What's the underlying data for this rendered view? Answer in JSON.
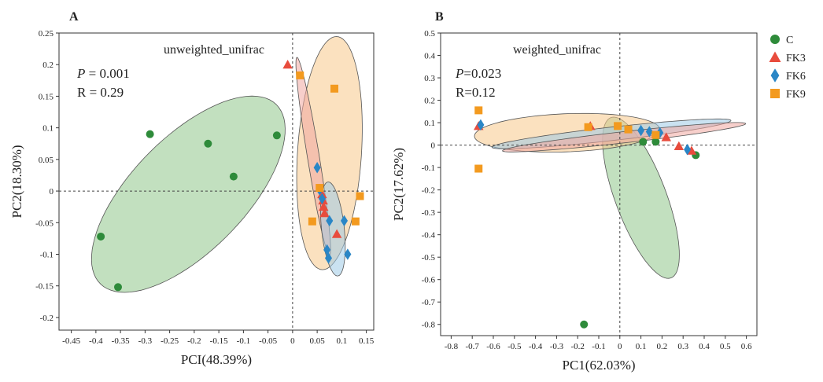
{
  "figure": {
    "colors": {
      "C": "#2e8b3a",
      "FK3": "#e84c3d",
      "FK6": "#2a86c6",
      "FK9": "#f39a1f",
      "C_fill": "#8fc78a",
      "FK3_fill": "#f0a8a0",
      "FK6_fill": "#9fcbe6",
      "FK9_fill": "#f8c88a"
    },
    "icons": {
      "C": "circle",
      "FK3": "triangle",
      "FK6": "diamond",
      "FK9": "square"
    }
  },
  "chart_data": [
    {
      "panel": "A",
      "type": "scatter",
      "title": "",
      "method_label": "unweighted_unifrac",
      "stats": {
        "p_prefix": "P",
        "p_value": "= 0.001",
        "r": "R = 0.29"
      },
      "xlabel": "PCI(48.39%)",
      "ylabel": "PC2(18.30%)",
      "xlim": [
        -0.475,
        0.165
      ],
      "ylim": [
        -0.22,
        0.25
      ],
      "xticks": [
        -0.45,
        -0.4,
        -0.35,
        -0.3,
        -0.25,
        -0.2,
        -0.15,
        -0.1,
        -0.05,
        0,
        0.05,
        0.1,
        0.15
      ],
      "xtick_labels": [
        "-0.45",
        "-0.4",
        "-0.35",
        "-0.3",
        "-0.25",
        "-0.2",
        "-0.15",
        "-0.1",
        "-0.05",
        "0",
        "0.05",
        "0.1",
        "0.15"
      ],
      "yticks": [
        0.25,
        0.2,
        0.15,
        0.1,
        0.05,
        0,
        -0.05,
        -0.1,
        -0.15,
        -0.2
      ],
      "ytick_labels": [
        "0.25",
        "0.2",
        "0.15",
        "0.1",
        "0.05",
        "0",
        "-0.05",
        "-0.1",
        "-0.15",
        "-0.2"
      ],
      "reference_lines": {
        "x": 0,
        "y": 0
      },
      "series": [
        {
          "name": "C",
          "marker": "circle",
          "points": [
            [
              -0.39,
              -0.072
            ],
            [
              -0.355,
              -0.152
            ],
            [
              -0.29,
              0.09
            ],
            [
              -0.172,
              0.075
            ],
            [
              -0.12,
              0.023
            ],
            [
              -0.032,
              0.088
            ]
          ]
        },
        {
          "name": "FK3",
          "marker": "triangle",
          "points": [
            [
              -0.01,
              0.2
            ],
            [
              0.06,
              -0.005
            ],
            [
              0.062,
              -0.015
            ],
            [
              0.063,
              -0.025
            ],
            [
              0.065,
              -0.035
            ],
            [
              0.09,
              -0.068
            ]
          ]
        },
        {
          "name": "FK6",
          "marker": "diamond",
          "points": [
            [
              0.05,
              0.037
            ],
            [
              0.055,
              0.002
            ],
            [
              0.06,
              -0.012
            ],
            [
              0.075,
              -0.047
            ],
            [
              0.07,
              -0.093
            ],
            [
              0.073,
              -0.106
            ],
            [
              0.105,
              -0.047
            ],
            [
              0.112,
              -0.1
            ]
          ]
        },
        {
          "name": "FK9",
          "marker": "square",
          "points": [
            [
              0.015,
              0.183
            ],
            [
              0.085,
              0.162
            ],
            [
              0.04,
              -0.048
            ],
            [
              0.055,
              0.005
            ],
            [
              0.128,
              -0.048
            ],
            [
              0.137,
              -0.008
            ]
          ]
        }
      ],
      "ellipses": [
        {
          "group": "C",
          "cx": -0.212,
          "cy": -0.005,
          "rx": 0.23,
          "ry": 0.1,
          "angle_deg": 35
        },
        {
          "group": "FK9",
          "cx": 0.075,
          "cy": 0.06,
          "rx": 0.065,
          "ry": 0.185,
          "angle_deg": -5
        },
        {
          "group": "FK3",
          "cx": 0.042,
          "cy": 0.055,
          "rx": 0.012,
          "ry": 0.16,
          "angle_deg": 12
        },
        {
          "group": "FK6",
          "cx": 0.082,
          "cy": -0.06,
          "rx": 0.023,
          "ry": 0.075,
          "angle_deg": 8
        }
      ]
    },
    {
      "panel": "B",
      "type": "scatter",
      "title": "",
      "method_label": "weighted_unifrac",
      "stats": {
        "p_prefix": "P",
        "p_value": "=0.023",
        "r": "R=0.12"
      },
      "xlabel": "PC1(62.03%)",
      "ylabel": "PC2(17.62%)",
      "xlim": [
        -0.85,
        0.65
      ],
      "ylim": [
        -0.85,
        0.5
      ],
      "xticks": [
        -0.8,
        -0.7,
        -0.6,
        -0.5,
        -0.4,
        -0.3,
        -0.2,
        -0.1,
        0,
        0.1,
        0.2,
        0.3,
        0.4,
        0.5,
        0.6
      ],
      "xtick_labels": [
        "-0.8",
        "-0.7",
        "-0.6",
        "-0.5",
        "-0.4",
        "-0.3",
        "-0.2",
        "-0.1",
        "0",
        "0.1",
        "0.2",
        "0.3",
        "0.4",
        "0.5",
        "0.6"
      ],
      "yticks": [
        0.5,
        0.4,
        0.3,
        0.2,
        0.1,
        0,
        -0.1,
        -0.2,
        -0.3,
        -0.4,
        -0.5,
        -0.6,
        -0.7,
        -0.8
      ],
      "ytick_labels": [
        "0.5",
        "0.4",
        "0.3",
        "0.2",
        "0.1",
        "0",
        "-0.1",
        "-0.2",
        "-0.3",
        "-0.4",
        "-0.5",
        "-0.6",
        "-0.7",
        "-0.8"
      ],
      "reference_lines": {
        "x": 0,
        "y": 0
      },
      "series": [
        {
          "name": "C",
          "marker": "circle",
          "points": [
            [
              -0.17,
              -0.8
            ],
            [
              0.11,
              0.015
            ],
            [
              0.17,
              0.015
            ],
            [
              0.36,
              -0.045
            ]
          ]
        },
        {
          "name": "FK3",
          "marker": "triangle",
          "points": [
            [
              -0.67,
              0.085
            ],
            [
              -0.14,
              0.085
            ],
            [
              0.22,
              0.035
            ],
            [
              0.28,
              -0.005
            ],
            [
              0.34,
              -0.025
            ]
          ]
        },
        {
          "name": "FK6",
          "marker": "diamond",
          "points": [
            [
              -0.66,
              0.09
            ],
            [
              0.1,
              0.065
            ],
            [
              0.14,
              0.06
            ],
            [
              0.19,
              0.055
            ],
            [
              0.32,
              -0.02
            ]
          ]
        },
        {
          "name": "FK9",
          "marker": "square",
          "points": [
            [
              -0.67,
              0.155
            ],
            [
              -0.67,
              -0.105
            ],
            [
              -0.15,
              0.08
            ],
            [
              -0.01,
              0.085
            ],
            [
              0.04,
              0.07
            ],
            [
              0.17,
              0.045
            ]
          ]
        }
      ],
      "ellipses": [
        {
          "group": "C",
          "cx": 0.1,
          "cy": -0.235,
          "rx": 0.12,
          "ry": 0.385,
          "angle_deg": 22
        },
        {
          "group": "FK9",
          "cx": -0.25,
          "cy": 0.055,
          "rx": 0.44,
          "ry": 0.085,
          "angle_deg": 2
        },
        {
          "group": "FK6",
          "cx": -0.04,
          "cy": 0.05,
          "rx": 0.57,
          "ry": 0.03,
          "angle_deg": 6
        },
        {
          "group": "FK3",
          "cx": 0.02,
          "cy": 0.035,
          "rx": 0.58,
          "ry": 0.025,
          "angle_deg": 6
        }
      ],
      "legend": {
        "placement": "right",
        "items": [
          {
            "label": "C",
            "marker": "circle"
          },
          {
            "label": "FK3",
            "marker": "triangle"
          },
          {
            "label": "FK6",
            "marker": "diamond"
          },
          {
            "label": "FK9",
            "marker": "square"
          }
        ]
      }
    }
  ]
}
